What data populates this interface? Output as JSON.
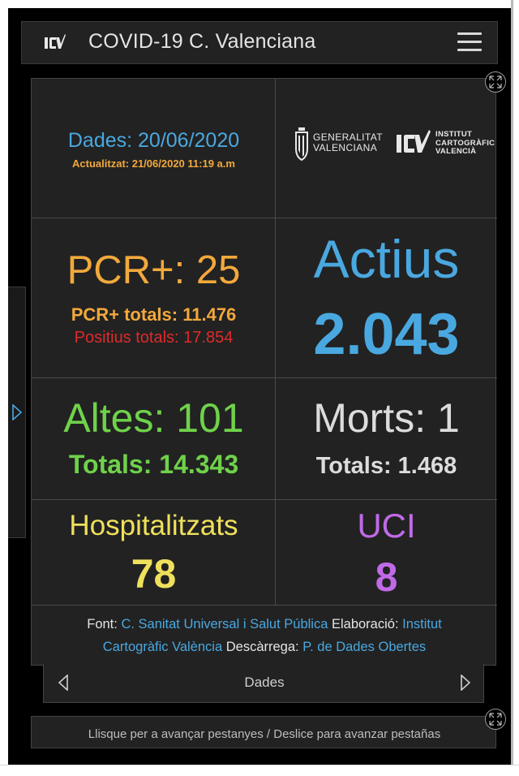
{
  "header": {
    "title": "COVID-19 C. Valenciana",
    "logo_icon": "icv-logo-icon",
    "menu_icon": "hamburger-menu-icon"
  },
  "info": {
    "data_date": "Dades: 20/06/2020",
    "updated": "Actualitzat: 21/06/2020 11:19 a.m",
    "gv_line1": "GENERALITAT",
    "gv_line2": "VALENCIANA",
    "icv_line1": "INSTITUT",
    "icv_line2": "CARTOGRÀFIC",
    "icv_line3": "VALENCIÀ"
  },
  "pcr": {
    "daily": "PCR+: 25",
    "totals": "PCR+ totals: 11.476",
    "positives_totals": "Positius totals: 17.854"
  },
  "actius": {
    "label": "Actius",
    "value": "2.043"
  },
  "altes": {
    "daily": "Altes: 101",
    "totals": "Totals: 14.343"
  },
  "morts": {
    "daily": "Morts: 1",
    "totals": "Totals: 1.468"
  },
  "hospitalitzats": {
    "label": "Hospitalitzats",
    "value": "78"
  },
  "uci": {
    "label": "UCI",
    "value": "8"
  },
  "sources": {
    "font_label": "Font:",
    "font_link": "C. Sanitat Universal i Salut Pública",
    "elaboracio_label": "Elaboració:",
    "elaboracio_link": "Institut Cartogràfic València",
    "descarrega_label": "Descàrrega:",
    "descarrega_link": "P. de Dades Obertes"
  },
  "pager": {
    "label": "Dades"
  },
  "hint": {
    "text": "Llisque per a avançar pestanyes / Deslice para avanzar pestañas"
  },
  "colors": {
    "blue": "#4aa8e0",
    "orange": "#f2a93b",
    "red": "#e02a2a",
    "green": "#6fd24a",
    "yellow": "#efe05c",
    "purple": "#c06ae8",
    "panel": "#222222"
  }
}
